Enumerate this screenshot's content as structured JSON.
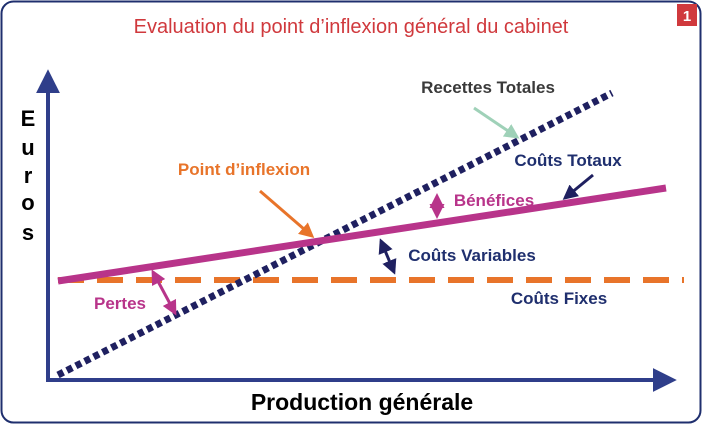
{
  "title": "Evaluation du point d’inflexion général du cabinet",
  "badge": "1",
  "axes": {
    "y_label_letters": [
      "E",
      "u",
      "r",
      "o",
      "s"
    ],
    "x_label": "Production générale"
  },
  "labels": {
    "recettes_totales": "Recettes Totales",
    "couts_totaux": "Coûts Totaux",
    "benefices": "Bénéfices",
    "point_inflexion": "Point d’inflexion",
    "couts_variables": "Coûts Variables",
    "couts_fixes": "Coûts Fixes",
    "pertes": "Pertes"
  },
  "colors": {
    "frame": "#1f2f6e",
    "title": "#d0393d",
    "axis": "#2f3e8a",
    "recettes": "#1f2060",
    "couts_totaux": "#b8348a",
    "couts_fixes": "#e8742a",
    "label_dark": "#1f2f6e",
    "label_magenta": "#b8348a",
    "label_orange": "#e8742a",
    "label_gray": "#3a3a3a",
    "arrow_green": "#9fd1b8",
    "badge_bg": "#d0393d",
    "badge_fg": "#ffffff"
  }
}
